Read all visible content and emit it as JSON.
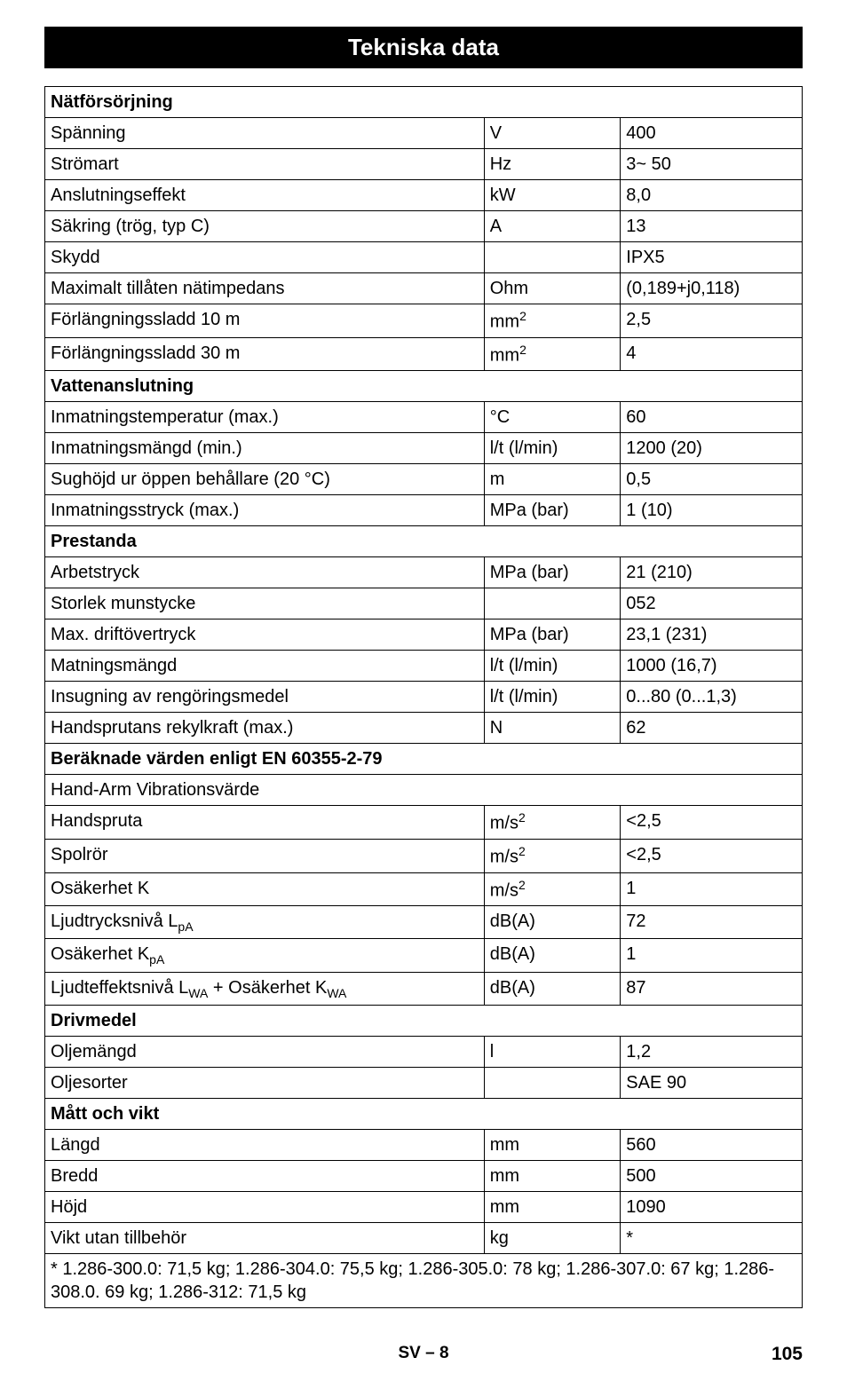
{
  "title": "Tekniska data",
  "sections": [
    {
      "header": "Nätförsörjning",
      "rows": [
        {
          "label": "Spänning",
          "unit": "V",
          "value": "400"
        },
        {
          "label": "Strömart",
          "unit": "Hz",
          "value": "3~ 50"
        },
        {
          "label": "Anslutningseffekt",
          "unit": "kW",
          "value": "8,0"
        },
        {
          "label": "Säkring (trög, typ  C)",
          "unit": "A",
          "value": "13"
        },
        {
          "label": "Skydd",
          "unit": "",
          "value": "IPX5"
        },
        {
          "label": "Maximalt tillåten nätimpedans",
          "unit": "Ohm",
          "value": "(0,189+j0,118)"
        },
        {
          "label": "Förlängningssladd 10 m",
          "unit": "mm²",
          "value": "2,5"
        },
        {
          "label": "Förlängningssladd 30 m",
          "unit": "mm²",
          "value": "4"
        }
      ]
    },
    {
      "header": "Vattenanslutning",
      "rows": [
        {
          "label": "Inmatningstemperatur (max.)",
          "unit": "°C",
          "value": "60"
        },
        {
          "label": "Inmatningsmängd (min.)",
          "unit": "l/t (l/min)",
          "value": "1200 (20)"
        },
        {
          "label": "Sughöjd ur öppen behållare (20 °C)",
          "unit": "m",
          "value": "0,5"
        },
        {
          "label": "Inmatningsstryck (max.)",
          "unit": "MPa (bar)",
          "value": "1 (10)"
        }
      ]
    },
    {
      "header": "Prestanda",
      "rows": [
        {
          "label": "Arbetstryck",
          "unit": "MPa (bar)",
          "value": "21 (210)"
        },
        {
          "label": "Storlek munstycke",
          "unit": "",
          "value": "052"
        },
        {
          "label": "Max. driftövertryck",
          "unit": "MPa (bar)",
          "value": "23,1 (231)"
        },
        {
          "label": "Matningsmängd",
          "unit": "l/t (l/min)",
          "value": "1000 (16,7)"
        },
        {
          "label": "Insugning av rengöringsmedel",
          "unit": "l/t (l/min)",
          "value": "0...80 (0...1,3)"
        },
        {
          "label": "Handsprutans rekylkraft (max.)",
          "unit": "N",
          "value": "62"
        }
      ]
    },
    {
      "header": "Beräknade värden enligt EN 60355-2-79",
      "rows": [
        {
          "label": "Hand-Arm Vibrationsvärde",
          "unit": null,
          "value": null,
          "span": true
        },
        {
          "label": "Handspruta",
          "unit": "m/s²",
          "value": "<2,5"
        },
        {
          "label": "Spolrör",
          "unit": "m/s²",
          "value": "<2,5"
        },
        {
          "label": "Osäkerhet K",
          "unit": "m/s²",
          "value": "1"
        },
        {
          "label_html": "Ljudtrycksnivå L<sub>pA</sub>",
          "unit": "dB(A)",
          "value": "72"
        },
        {
          "label_html": "Osäkerhet K<sub>pA</sub>",
          "unit": "dB(A)",
          "value": "1"
        },
        {
          "label_html": "Ljudteffektsnivå L<sub>WA</sub> + Osäkerhet K<sub>WA</sub>",
          "unit": "dB(A)",
          "value": "87"
        }
      ]
    },
    {
      "header": "Drivmedel",
      "rows": [
        {
          "label": "Oljemängd",
          "unit": "l",
          "value": "1,2"
        },
        {
          "label": "Oljesorter",
          "unit": "",
          "value": "SAE 90"
        }
      ]
    },
    {
      "header": "Mått och vikt",
      "rows": [
        {
          "label": "Längd",
          "unit": "mm",
          "value": "560"
        },
        {
          "label": "Bredd",
          "unit": "mm",
          "value": "500"
        },
        {
          "label": "Höjd",
          "unit": "mm",
          "value": "1090"
        },
        {
          "label": "Vikt utan tillbehör",
          "unit": "kg",
          "value": "*"
        }
      ]
    }
  ],
  "footnote": "* 1.286-300.0: 71,5 kg; 1.286-304.0: 75,5 kg; 1.286-305.0: 78 kg; 1.286-307.0: 67 kg; 1.286-308.0. 69 kg; 1.286-312: 71,5 kg",
  "footer_center": "SV – 8",
  "page_number": "105"
}
